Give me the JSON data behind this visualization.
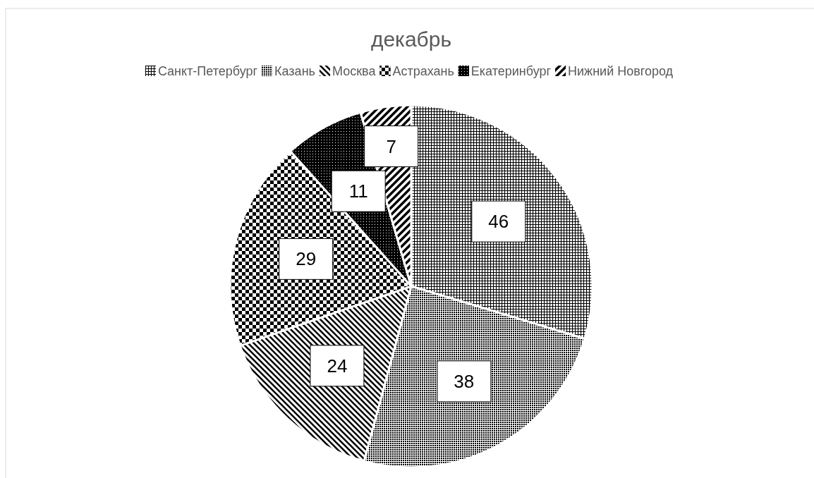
{
  "chart_data": {
    "type": "pie",
    "title": "декабрь",
    "categories": [
      "Санкт-Петербург",
      "Казань",
      "Москва",
      "Астрахань",
      "Екатеринбург",
      "Нижний Новгород"
    ],
    "values": [
      46,
      38,
      24,
      29,
      11,
      7
    ],
    "colors": [
      "#000000",
      "#000000",
      "#000000",
      "#000000",
      "#000000",
      "#000000"
    ],
    "data_labels": true,
    "legend": "top"
  }
}
